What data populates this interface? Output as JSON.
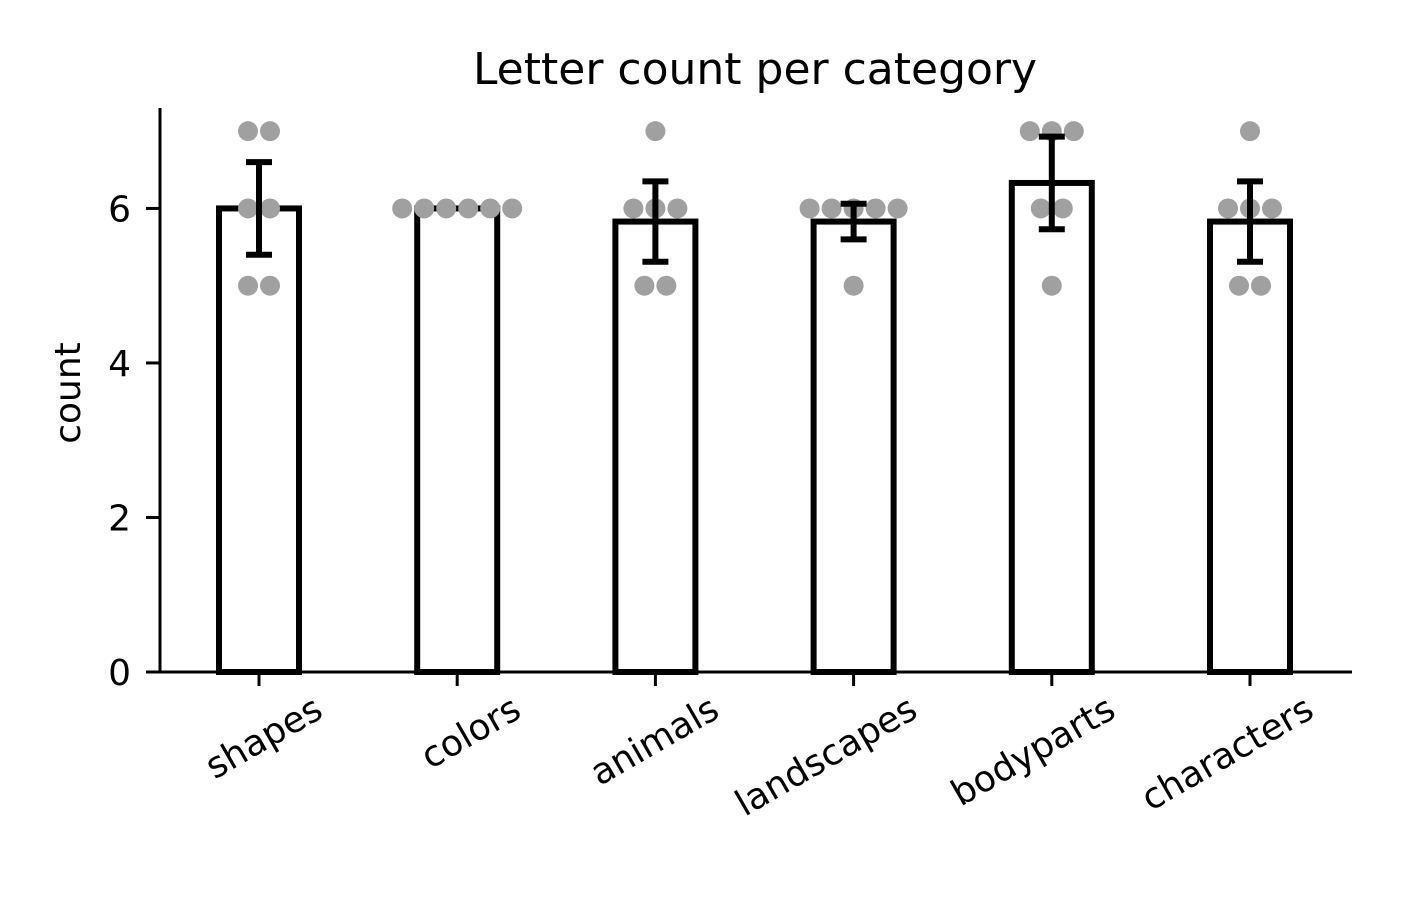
{
  "chart_data": {
    "type": "bar",
    "title": "Letter count per category",
    "xlabel": "",
    "ylabel": "count",
    "ylim": [
      0,
      7.3
    ],
    "yticks": [
      0,
      2,
      4,
      6
    ],
    "ytick_labels": [
      "0",
      "2",
      "4",
      "6"
    ],
    "grid": false,
    "legend": "none",
    "categories": [
      "shapes",
      "colors",
      "animals",
      "landscapes",
      "bodyparts",
      "characters"
    ],
    "values": [
      6.0,
      6.0,
      5.83,
      5.83,
      6.33,
      5.83
    ],
    "error": [
      0.6,
      0.0,
      0.52,
      0.23,
      0.6,
      0.52
    ],
    "points": [
      [
        7,
        7,
        6,
        6,
        5,
        5
      ],
      [
        6,
        6,
        6,
        6,
        6,
        6
      ],
      [
        7,
        6,
        6,
        6,
        5,
        5
      ],
      [
        6,
        6,
        6,
        6,
        6,
        5
      ],
      [
        7,
        7,
        7,
        6,
        6,
        5
      ],
      [
        7,
        6,
        6,
        6,
        5,
        5
      ]
    ],
    "colors": {
      "bar_edge": "#000000",
      "bar_fill": "#ffffff",
      "error_bar": "#000000",
      "points": "#a0a0a0"
    }
  }
}
